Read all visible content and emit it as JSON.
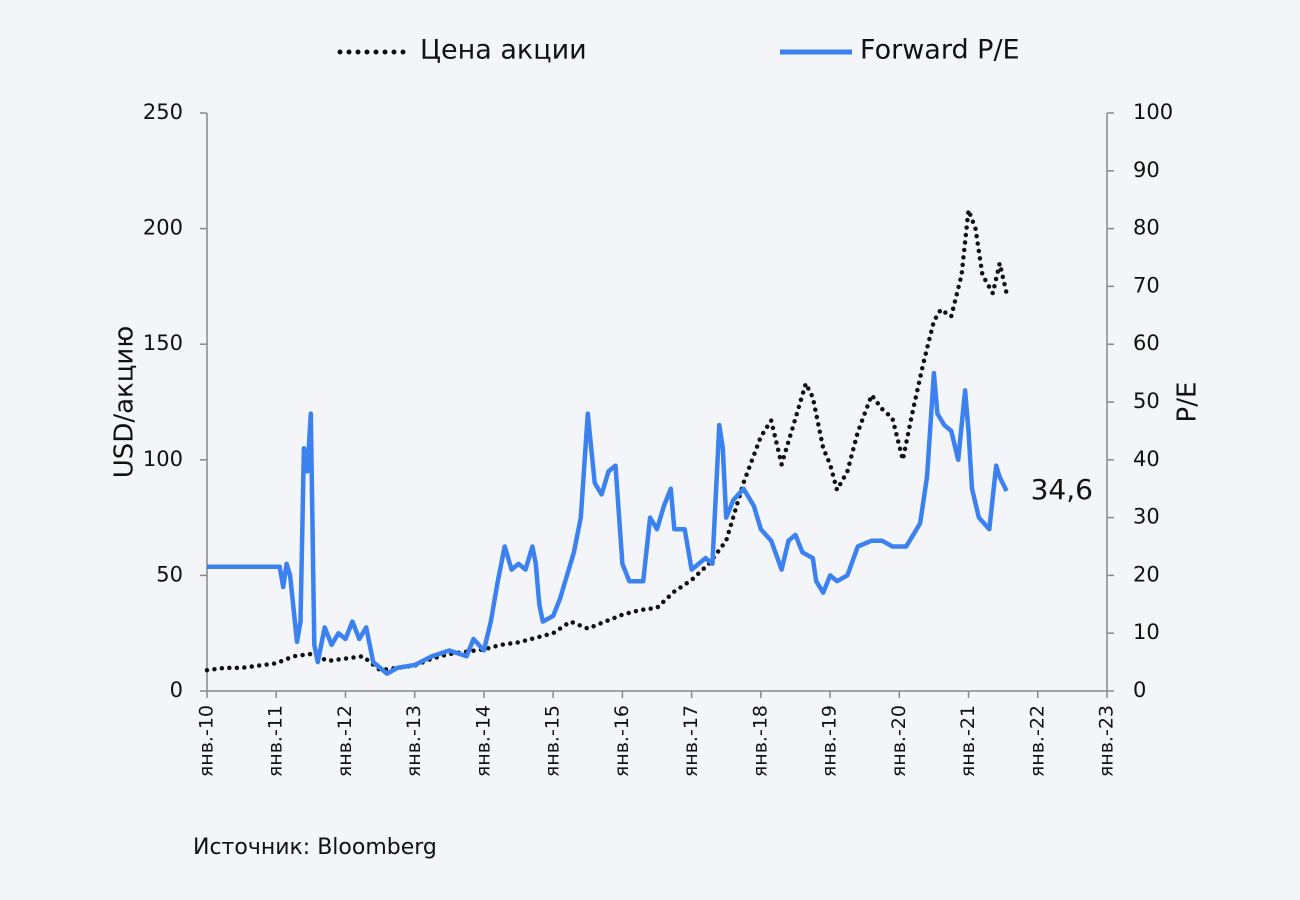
{
  "chart_data": {
    "type": "line",
    "legend": "top",
    "y_label": "USD/акцию",
    "y2_label": "P/E",
    "source": "Источник: Bloomberg",
    "xlim": [
      2010,
      2023
    ],
    "xticks": [
      {
        "value": 2010,
        "label": "янв.-10"
      },
      {
        "value": 2011,
        "label": "янв.-11"
      },
      {
        "value": 2012,
        "label": "янв.-12"
      },
      {
        "value": 2013,
        "label": "янв.-13"
      },
      {
        "value": 2014,
        "label": "янв.-14"
      },
      {
        "value": 2015,
        "label": "янв.-15"
      },
      {
        "value": 2016,
        "label": "янв.-16"
      },
      {
        "value": 2017,
        "label": "янв.-17"
      },
      {
        "value": 2018,
        "label": "янв.-18"
      },
      {
        "value": 2019,
        "label": "янв.-19"
      },
      {
        "value": 2020,
        "label": "янв.-20"
      },
      {
        "value": 2021,
        "label": "янв.-21"
      },
      {
        "value": 2022,
        "label": "янв.-22"
      },
      {
        "value": 2023,
        "label": "янв.-23"
      }
    ],
    "ylim": [
      0,
      250
    ],
    "yticks": [
      0,
      50,
      100,
      150,
      200,
      250
    ],
    "y2lim": [
      0,
      100
    ],
    "y2ticks": [
      0,
      10,
      20,
      30,
      40,
      50,
      60,
      70,
      80,
      90,
      100
    ],
    "series": [
      {
        "name": "Цена акции",
        "color": "#111111",
        "style": "dotted",
        "x": [
          2010.0,
          2010.25,
          2010.5,
          2010.75,
          2011.0,
          2011.25,
          2011.5,
          2011.75,
          2012.0,
          2012.25,
          2012.5,
          2012.75,
          2013.0,
          2013.25,
          2013.5,
          2013.75,
          2014.0,
          2014.25,
          2014.5,
          2014.75,
          2015.0,
          2015.25,
          2015.5,
          2015.75,
          2016.0,
          2016.25,
          2016.5,
          2016.75,
          2017.0,
          2017.25,
          2017.5,
          2017.75,
          2018.0,
          2018.15,
          2018.3,
          2018.5,
          2018.65,
          2018.75,
          2018.9,
          2019.0,
          2019.1,
          2019.25,
          2019.4,
          2019.6,
          2019.75,
          2019.9,
          2020.05,
          2020.2,
          2020.35,
          2020.5,
          2020.6,
          2020.75,
          2020.9,
          2021.0,
          2021.1,
          2021.2,
          2021.35,
          2021.45,
          2021.55
        ],
        "values": [
          9,
          10,
          10,
          11,
          12,
          15,
          16,
          13,
          14,
          15,
          9,
          10,
          11,
          14,
          16,
          17,
          18,
          20,
          21,
          23,
          25,
          30,
          27,
          30,
          33,
          35,
          36,
          43,
          48,
          55,
          65,
          90,
          110,
          117,
          98,
          118,
          133,
          127,
          105,
          98,
          87,
          95,
          112,
          128,
          122,
          118,
          100,
          122,
          142,
          160,
          165,
          162,
          180,
          208,
          200,
          180,
          172,
          185,
          172
        ]
      },
      {
        "name": "Forward P/E",
        "color": "#3b82f0",
        "style": "solid",
        "axis": "y2",
        "end_label": "34,6",
        "x": [
          2010.0,
          2011.0,
          2011.05,
          2011.1,
          2011.15,
          2011.2,
          2011.3,
          2011.35,
          2011.4,
          2011.45,
          2011.5,
          2011.55,
          2011.6,
          2011.7,
          2011.8,
          2011.9,
          2012.0,
          2012.1,
          2012.2,
          2012.3,
          2012.4,
          2012.5,
          2012.6,
          2012.75,
          2013.0,
          2013.25,
          2013.5,
          2013.75,
          2013.85,
          2014.0,
          2014.1,
          2014.2,
          2014.3,
          2014.4,
          2014.5,
          2014.6,
          2014.7,
          2014.75,
          2014.8,
          2014.85,
          2015.0,
          2015.1,
          2015.2,
          2015.3,
          2015.4,
          2015.5,
          2015.55,
          2015.6,
          2015.7,
          2015.8,
          2015.9,
          2016.0,
          2016.1,
          2016.3,
          2016.4,
          2016.5,
          2016.6,
          2016.7,
          2016.75,
          2016.9,
          2017.0,
          2017.2,
          2017.3,
          2017.4,
          2017.45,
          2017.5,
          2017.6,
          2017.75,
          2017.9,
          2018.0,
          2018.15,
          2018.3,
          2018.4,
          2018.5,
          2018.6,
          2018.75,
          2018.8,
          2018.9,
          2019.0,
          2019.1,
          2019.25,
          2019.4,
          2019.6,
          2019.75,
          2019.9,
          2020.0,
          2020.1,
          2020.2,
          2020.3,
          2020.4,
          2020.5,
          2020.55,
          2020.65,
          2020.75,
          2020.85,
          2020.95,
          2021.0,
          2021.05,
          2021.15,
          2021.3,
          2021.4,
          2021.45,
          2021.55
        ],
        "values": [
          21.5,
          21.5,
          21.5,
          18,
          22,
          20,
          8.5,
          12,
          42,
          38,
          48,
          8,
          5,
          11,
          8,
          10,
          9,
          12,
          9,
          11,
          5,
          4,
          3,
          4,
          4.5,
          6,
          7,
          6,
          9,
          7,
          12,
          19,
          25,
          21,
          22,
          21,
          25,
          22,
          15,
          12,
          13,
          16,
          20,
          24,
          30,
          48,
          42,
          36,
          34,
          38,
          39,
          22,
          19,
          19,
          30,
          28,
          32,
          35,
          28,
          28,
          21,
          23,
          22,
          46,
          42,
          30,
          33,
          35,
          32,
          28,
          26,
          21,
          26,
          27,
          24,
          23,
          19,
          17,
          20,
          19,
          20,
          25,
          26,
          26,
          25,
          25,
          25,
          27,
          29,
          37,
          55,
          48,
          46,
          45,
          40,
          52,
          45,
          35,
          30,
          28,
          39,
          37,
          34.6
        ]
      }
    ]
  }
}
